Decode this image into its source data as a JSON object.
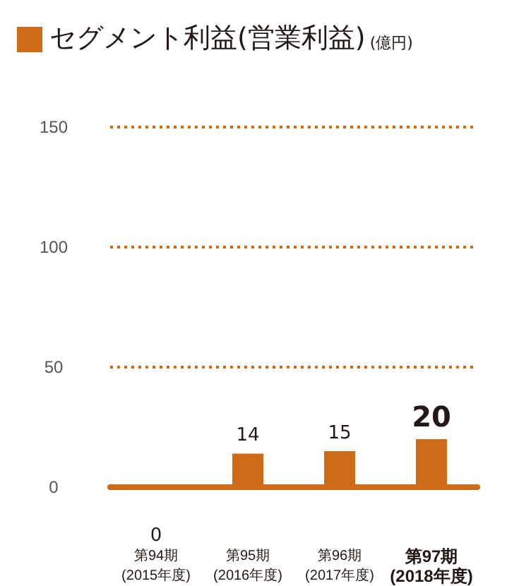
{
  "chart_data": {
    "type": "bar",
    "title": "セグメント利益(営業利益)",
    "ylabel": "(億円)",
    "categories": [
      "第94期\n(2015年度)",
      "第95期\n(2016年度)",
      "第96期\n(2017年度)",
      "第97期\n(2018年度)"
    ],
    "values": [
      0,
      14,
      15,
      20
    ],
    "color": "#cf6a17",
    "data_labels": true,
    "ylim": [
      0,
      150
    ],
    "yticks": [
      0,
      50,
      100,
      150
    ],
    "grid": "y"
  }
}
